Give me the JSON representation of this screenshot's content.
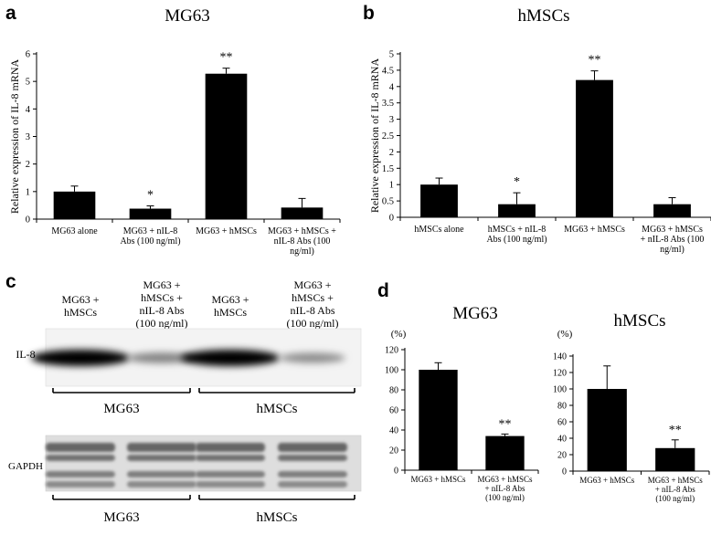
{
  "panels": {
    "a": {
      "letter": "a"
    },
    "b": {
      "letter": "b"
    },
    "c": {
      "letter": "c",
      "lanes": [
        "MG63 +\nhMSCs",
        "MG63 +\nhMSCs +\nnIL-8 Abs\n(100 ng/ml)",
        "MG63 +\nhMSCs",
        "MG63 +\nhMSCs +\nnIL-8 Abs\n(100 ng/ml)"
      ],
      "rows": [
        {
          "label": "IL-8",
          "band_intensity": [
            1.0,
            0.35,
            1.0,
            0.3
          ]
        },
        {
          "label": "GAPDH",
          "band_intensity": [
            0.85,
            0.85,
            0.85,
            0.85
          ]
        }
      ],
      "groups": [
        "MG63",
        "hMSCs"
      ]
    },
    "d": {
      "letter": "d"
    }
  },
  "chart_data": [
    {
      "type": "bar",
      "panel": "a",
      "title": "MG63",
      "ylabel": "Relative expression of IL-8 mRNA",
      "ylim": [
        0,
        6
      ],
      "yticks": [
        "0",
        "1",
        "2",
        "3",
        "4",
        "5",
        "6"
      ],
      "categories": [
        "MG63 alone",
        "MG63 + nIL-8\nAbs (100 ng/ml)",
        "MG63 + hMSCs",
        "MG63 + hMSCs +\nnIL-8 Abs (100\nng/ml)"
      ],
      "values": [
        1.0,
        0.38,
        5.28,
        0.42
      ],
      "errors": [
        0.2,
        0.1,
        0.2,
        0.33
      ],
      "annotations": [
        "",
        "*",
        "**",
        ""
      ],
      "grid": false,
      "color": "#000000"
    },
    {
      "type": "bar",
      "panel": "b",
      "title": "hMSCs",
      "ylabel": "Relative expression of IL-8 mRNA",
      "ylim": [
        0,
        5
      ],
      "yticks": [
        "0",
        "0.5",
        "1",
        "1.5",
        "2",
        "2.5",
        "3",
        "3.5",
        "4",
        "4.5",
        "5"
      ],
      "categories": [
        "hMSCs alone",
        "hMSCs + nIL-8\nAbs (100 ng/ml)",
        "MG63 + hMSCs",
        "MG63 + hMSCs\n+ nIL-8 Abs (100\nng/ml)"
      ],
      "values": [
        1.0,
        0.4,
        4.2,
        0.4
      ],
      "errors": [
        0.2,
        0.35,
        0.28,
        0.2
      ],
      "annotations": [
        "",
        "*",
        "**",
        ""
      ],
      "grid": false,
      "color": "#000000"
    },
    {
      "type": "bar",
      "panel": "d-left",
      "title": "MG63",
      "ylabel": "(%)",
      "ylim": [
        0,
        120
      ],
      "yticks": [
        "0",
        "20",
        "40",
        "60",
        "80",
        "100",
        "120"
      ],
      "categories": [
        "MG63 + hMSCs",
        "MG63 + hMSCs\n+ nIL-8 Abs\n(100 ng/ml)"
      ],
      "values": [
        100,
        34
      ],
      "errors": [
        7,
        2
      ],
      "annotations": [
        "",
        "**"
      ],
      "grid": false,
      "color": "#000000"
    },
    {
      "type": "bar",
      "panel": "d-right",
      "title": "hMSCs",
      "ylabel": "(%)",
      "ylim": [
        0,
        140
      ],
      "yticks": [
        "0",
        "20",
        "40",
        "60",
        "80",
        "100",
        "120",
        "140"
      ],
      "categories": [
        "MG63 + hMSCs",
        "MG63 + hMSCs\n+ nIL-8 Abs\n(100 ng/ml)"
      ],
      "values": [
        100,
        28
      ],
      "errors": [
        28,
        10
      ],
      "annotations": [
        "",
        "**"
      ],
      "grid": false,
      "color": "#000000"
    }
  ]
}
